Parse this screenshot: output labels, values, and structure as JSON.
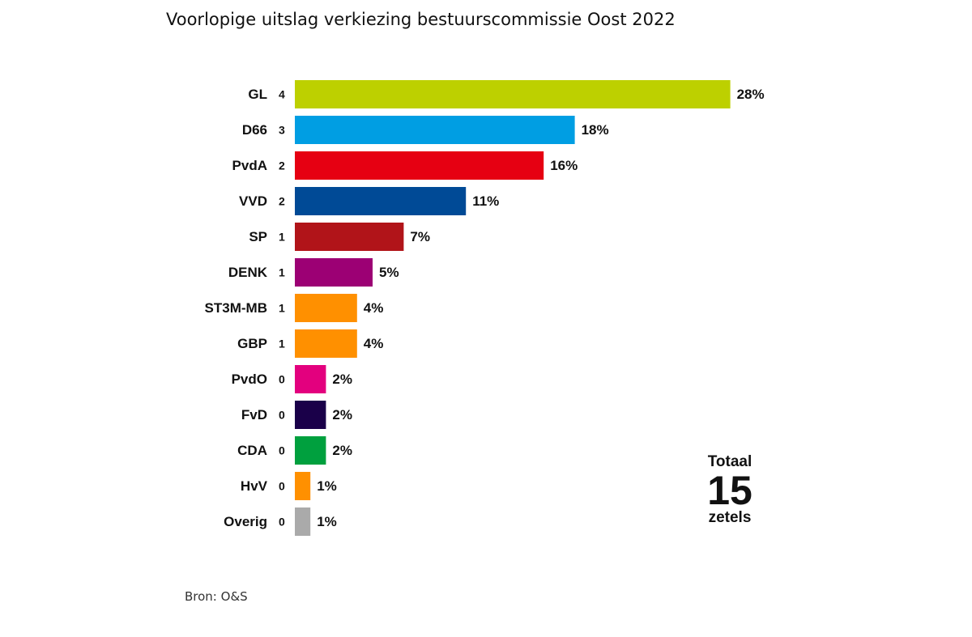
{
  "chart_data": {
    "type": "bar",
    "orientation": "horizontal",
    "title": "Voorlopige uitslag verkiezing bestuurscommissie Oost 2022",
    "categories": [
      "GL",
      "D66",
      "PvdA",
      "VVD",
      "SP",
      "DENK",
      "ST3M-MB",
      "GBP",
      "PvdO",
      "FvD",
      "CDA",
      "HvV",
      "Overig"
    ],
    "seats": [
      4,
      3,
      2,
      2,
      1,
      1,
      1,
      1,
      0,
      0,
      0,
      0,
      0
    ],
    "values": [
      28,
      18,
      16,
      11,
      7,
      5,
      4,
      4,
      2,
      2,
      2,
      1,
      1
    ],
    "value_labels": [
      "28%",
      "18%",
      "16%",
      "11%",
      "7%",
      "5%",
      "4%",
      "4%",
      "2%",
      "2%",
      "2%",
      "1%",
      "1%"
    ],
    "colors": [
      "#bdd000",
      "#009ee3",
      "#e60012",
      "#004a96",
      "#b11419",
      "#9c0074",
      "#ff9000",
      "#ff9000",
      "#e3007e",
      "#1a0049",
      "#00a03e",
      "#ff9000",
      "#aaaaaa"
    ],
    "xlim": [
      0,
      30
    ],
    "grid": false
  },
  "total": {
    "label": "Totaal",
    "number": "15",
    "unit": "zetels"
  },
  "source": "Bron: O&S"
}
